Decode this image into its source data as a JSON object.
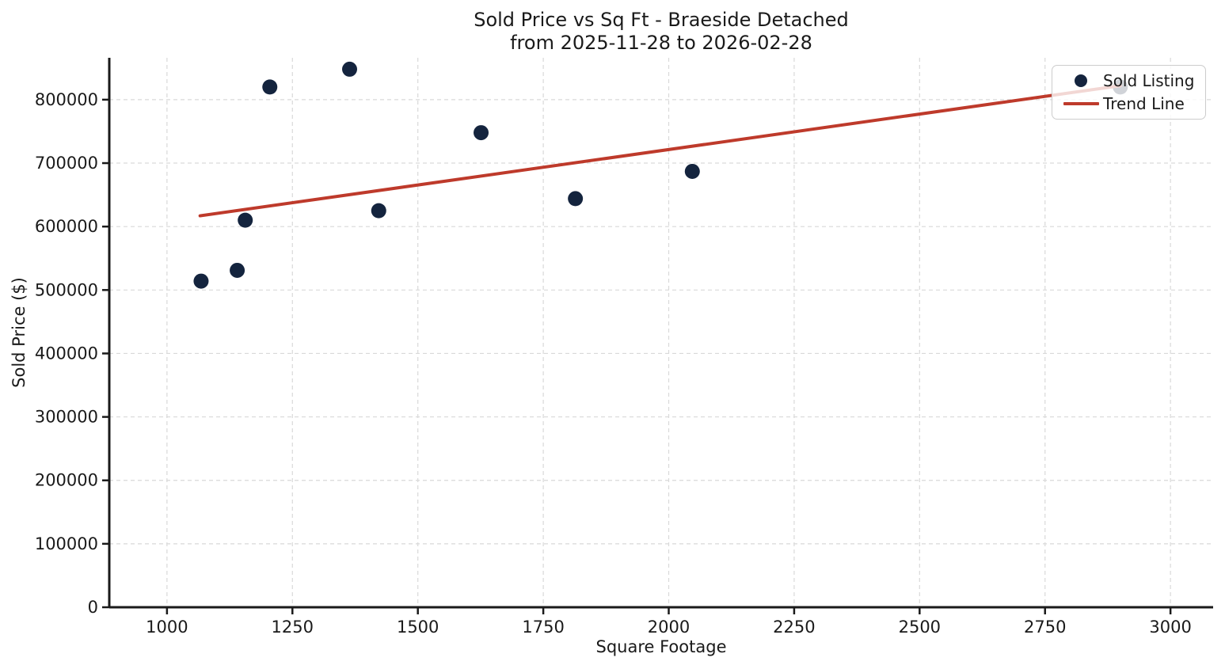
{
  "chart_data": {
    "type": "scatter",
    "title": "Sold Price vs Sq Ft - Braeside Detached",
    "subtitle": "from 2025-11-28 to 2026-02-28",
    "xlabel": "Square Footage",
    "ylabel": "Sold Price ($)",
    "xlim": [
      885,
      3085
    ],
    "ylim": [
      0,
      866000
    ],
    "x_ticks": [
      1000,
      1250,
      1500,
      1750,
      2000,
      2250,
      2500,
      2750,
      3000
    ],
    "y_ticks": [
      0,
      100000,
      200000,
      300000,
      400000,
      500000,
      600000,
      700000,
      800000
    ],
    "grid": true,
    "grid_style": "dashed",
    "legend_position": "upper right",
    "series": [
      {
        "name": "Sold Listing",
        "kind": "scatter",
        "color": "#14243e",
        "marker_size": 19,
        "points": [
          [
            1068,
            514000
          ],
          [
            1140,
            531000
          ],
          [
            1156,
            610000
          ],
          [
            1205,
            820000
          ],
          [
            1364,
            848000
          ],
          [
            1422,
            625000
          ],
          [
            1626,
            748000
          ],
          [
            1814,
            644000
          ],
          [
            2047,
            687000
          ],
          [
            2900,
            820000
          ]
        ]
      },
      {
        "name": "Trend Line",
        "kind": "line",
        "color": "#be3a2b",
        "line_width": 4,
        "points": [
          [
            1066,
            617000
          ],
          [
            2900,
            822000
          ]
        ]
      }
    ],
    "colors": {
      "scatter": "#14243e",
      "trend": "#be3a2b",
      "grid": "#d9d9d9",
      "axis": "#1a1a1a",
      "background": "#ffffff"
    }
  }
}
